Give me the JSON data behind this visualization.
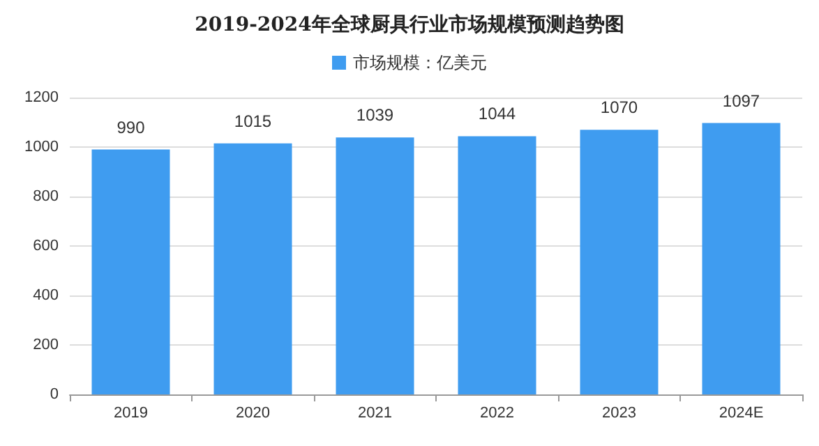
{
  "chart_data": {
    "type": "bar",
    "title": "2019-2024年全球厨具行业市场规模预测趋势图",
    "categories": [
      "2019",
      "2020",
      "2021",
      "2022",
      "2023",
      "2024E"
    ],
    "series": [
      {
        "name": "市场规模：亿美元",
        "color": "#3f9cf0",
        "values": [
          990,
          1015,
          1039,
          1044,
          1070,
          1097
        ]
      }
    ],
    "ylim": [
      0,
      1200
    ],
    "yticks": [
      0,
      200,
      400,
      600,
      800,
      1000,
      1200
    ],
    "grid": "y",
    "legend": "top",
    "data_labels": true
  }
}
